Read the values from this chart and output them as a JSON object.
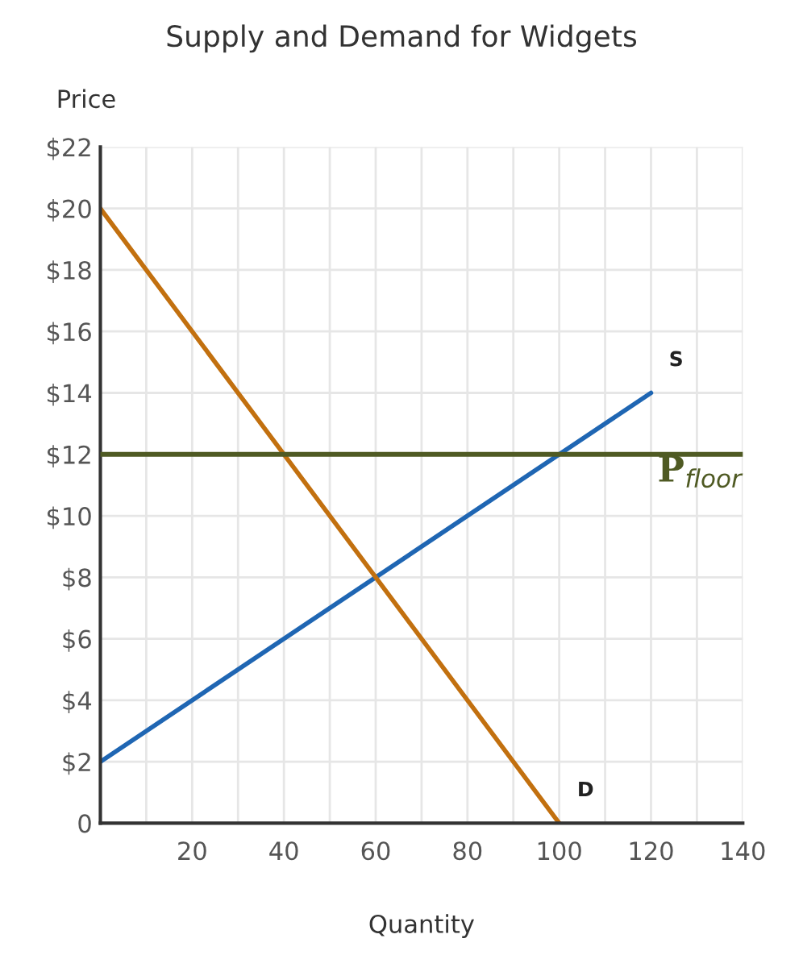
{
  "chart_data": {
    "type": "line",
    "title": "Supply and Demand for Widgets",
    "xlabel": "Quantity",
    "ylabel": "Price",
    "series": [
      {
        "name": "S",
        "color": "#1f66b3",
        "x": [
          0,
          120
        ],
        "values": [
          2,
          14
        ]
      },
      {
        "name": "D",
        "color": "#c2700f",
        "x": [
          0,
          100
        ],
        "values": [
          20,
          0
        ]
      }
    ],
    "xlim": [
      0,
      140
    ],
    "ylim": [
      0,
      22
    ],
    "xticks": [
      {
        "value": 0,
        "label": null
      },
      {
        "value": 10,
        "label": null
      },
      20,
      {
        "value": 30,
        "label": null
      },
      40,
      {
        "value": 50,
        "label": null
      },
      60,
      {
        "value": 70,
        "label": null
      },
      80,
      {
        "value": 90,
        "label": null
      },
      100,
      {
        "value": 110,
        "label": null
      },
      120,
      {
        "value": 130,
        "label": null
      },
      140
    ],
    "yticks": [
      {
        "value": 0,
        "label": "0"
      },
      {
        "value": 2,
        "label": "$2"
      },
      {
        "value": 4,
        "label": "$4"
      },
      {
        "value": 6,
        "label": "$6"
      },
      {
        "value": 8,
        "label": "$8"
      },
      {
        "value": 10,
        "label": "$10"
      },
      {
        "value": 12,
        "label": "$12"
      },
      {
        "value": 14,
        "label": "$14"
      },
      {
        "value": 16,
        "label": "$16"
      },
      {
        "value": 18,
        "label": "$18"
      },
      {
        "value": 20,
        "label": "$20"
      },
      {
        "value": 22,
        "label": "$22"
      }
    ],
    "ref_lines": [
      {
        "axis": "y",
        "value": 12,
        "label": "P$_{floor}$",
        "color": "#4f5a23"
      }
    ],
    "grid": true,
    "legend": false,
    "marker": "none",
    "line_style": "solid"
  }
}
